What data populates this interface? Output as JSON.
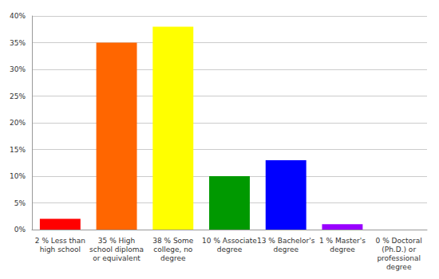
{
  "chart_data": {
    "type": "bar",
    "categories": [
      "2 % Less than\nhigh school",
      "35 % High\nschool diploma\nor equivalent",
      "38 % Some\ncollege, no\ndegree",
      "10 % Associate\ndegree",
      "13 % Bachelor's\ndegree",
      "1 % Master's\ndegree",
      "0 % Doctoral\n(Ph.D.) or\nprofessional\ndegree"
    ],
    "values": [
      2,
      35,
      38,
      10,
      13,
      1,
      0
    ],
    "colors": [
      "#ff0000",
      "#ff6600",
      "#ffff00",
      "#009900",
      "#0000ff",
      "#9900ff",
      "#ff00ff"
    ],
    "ylim": [
      0,
      40
    ],
    "yticks": [
      {
        "value": 0,
        "label": "0%"
      },
      {
        "value": 5,
        "label": "5%"
      },
      {
        "value": 10,
        "label": "10%"
      },
      {
        "value": 15,
        "label": "15%"
      },
      {
        "value": 20,
        "label": "20%"
      },
      {
        "value": 25,
        "label": "25%"
      },
      {
        "value": 30,
        "label": "30%"
      },
      {
        "value": 35,
        "label": "35%"
      },
      {
        "value": 40,
        "label": "40%"
      }
    ],
    "grid": true
  }
}
